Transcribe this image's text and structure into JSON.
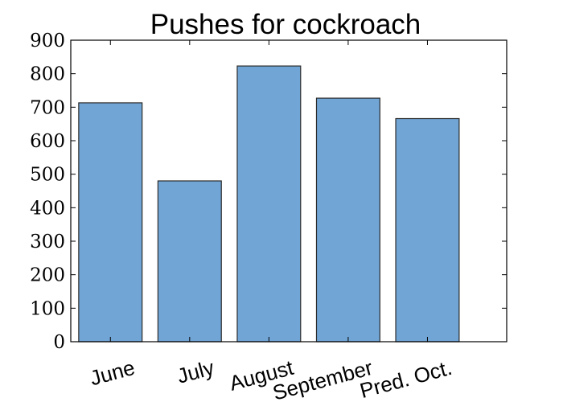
{
  "chart_data": {
    "type": "bar",
    "title": "Pushes for cockroach",
    "xlabel": "",
    "ylabel": "",
    "categories": [
      "June",
      "July",
      "August",
      "September",
      "Pred. Oct."
    ],
    "values": [
      713,
      480,
      823,
      727,
      666
    ],
    "ylim": [
      0,
      900
    ],
    "yticks": [
      0,
      100,
      200,
      300,
      400,
      500,
      600,
      700,
      800,
      900
    ],
    "ytick_labels": [
      "0",
      "100",
      "200",
      "300",
      "400",
      "500",
      "600",
      "700",
      "800",
      "900"
    ],
    "bar_color": "#71a5d6",
    "edge_color": "#2b2b2b",
    "grid": false,
    "legend": "none"
  }
}
